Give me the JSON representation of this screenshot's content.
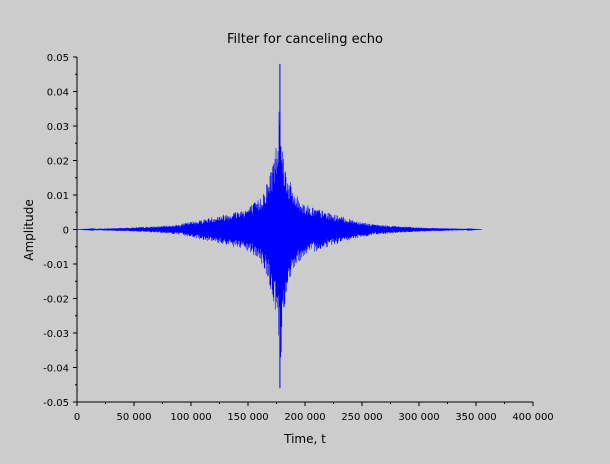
{
  "window": {
    "background": "#cccccc"
  },
  "chart_data": {
    "type": "line",
    "title": "Filter for canceling echo",
    "xlabel": "Time, t",
    "ylabel": "Amplitude",
    "xlim": [
      0,
      400000
    ],
    "ylim": [
      -0.05,
      0.05
    ],
    "x_ticks": [
      0,
      50000,
      100000,
      150000,
      200000,
      250000,
      300000,
      350000,
      400000
    ],
    "x_tick_labels": [
      "0",
      "50 000",
      "100 000",
      "150 000",
      "200 000",
      "250 000",
      "300 000",
      "350 000",
      "400 000"
    ],
    "y_ticks": [
      -0.05,
      -0.04,
      -0.03,
      -0.02,
      -0.01,
      0,
      0.01,
      0.02,
      0.03,
      0.04,
      0.05
    ],
    "y_tick_labels": [
      "-0.05",
      "-0.04",
      "-0.03",
      "-0.02",
      "-0.01",
      "0",
      "0.01",
      "0.02",
      "0.03",
      "0.04",
      "0.05"
    ],
    "grid": false,
    "line_color": "#0000ff",
    "series": [
      {
        "x": [
          0,
          25000,
          50000,
          75000,
          90000,
          110000,
          130000,
          150000,
          160000,
          168000,
          172000,
          176000,
          178000,
          180000,
          184000,
          190000,
          200000,
          220000,
          240000,
          260000,
          280000,
          300000,
          320000,
          340000,
          355000
        ],
        "max": [
          0,
          0.0003,
          0.0006,
          0.001,
          0.0015,
          0.003,
          0.0045,
          0.0065,
          0.009,
          0.015,
          0.021,
          0.027,
          0.048,
          0.025,
          0.017,
          0.011,
          0.0075,
          0.005,
          0.003,
          0.0015,
          0.001,
          0.0006,
          0.0004,
          0.0002,
          0
        ],
        "min": [
          0,
          -0.0003,
          -0.0006,
          -0.001,
          -0.0015,
          -0.003,
          -0.0045,
          -0.0065,
          -0.009,
          -0.015,
          -0.022,
          -0.027,
          -0.046,
          -0.026,
          -0.018,
          -0.011,
          -0.0075,
          -0.005,
          -0.003,
          -0.0015,
          -0.001,
          -0.0006,
          -0.0004,
          -0.0002,
          0
        ]
      }
    ]
  }
}
